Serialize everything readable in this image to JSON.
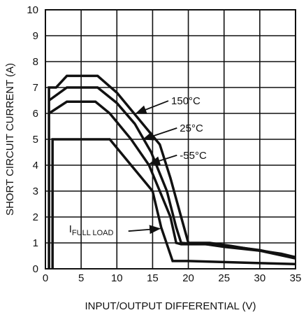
{
  "chart_data": {
    "type": "line",
    "title": "",
    "xlabel": "INPUT/OUTPUT DIFFERENTIAL (V)",
    "ylabel": "SHORT CIRCUIT CURRENT (A)",
    "xlim": [
      0,
      35
    ],
    "ylim": [
      0,
      10
    ],
    "xticks": [
      "0",
      "5",
      "10",
      "15",
      "20",
      "25",
      "30",
      "35"
    ],
    "yticks": [
      "0",
      "1",
      "2",
      "3",
      "4",
      "5",
      "6",
      "7",
      "8",
      "9",
      "10"
    ],
    "grid": true,
    "series": [
      {
        "name": "150°C",
        "points": [
          [
            0.5,
            0
          ],
          [
            0.5,
            7
          ],
          [
            1.5,
            7
          ],
          [
            3,
            7.45
          ],
          [
            7.3,
            7.45
          ],
          [
            10,
            6.8
          ],
          [
            13,
            5.8
          ],
          [
            16,
            4.8
          ],
          [
            17.5,
            3.5
          ],
          [
            19,
            2.0
          ],
          [
            20,
            1.0
          ],
          [
            21,
            1.0
          ],
          [
            23,
            1.0
          ],
          [
            26,
            0.88
          ],
          [
            30,
            0.7
          ],
          [
            33,
            0.58
          ],
          [
            35,
            0.45
          ]
        ]
      },
      {
        "name": "25°C",
        "points": [
          [
            0.5,
            6.5
          ],
          [
            3,
            7.0
          ],
          [
            7.3,
            7.0
          ],
          [
            10,
            6.4
          ],
          [
            12.5,
            5.6
          ],
          [
            14.8,
            4.5
          ],
          [
            17,
            3.0
          ],
          [
            18.3,
            1.6
          ],
          [
            19,
            1.0
          ],
          [
            20,
            0.98
          ],
          [
            22,
            0.96
          ],
          [
            25,
            0.9
          ],
          [
            30,
            0.72
          ],
          [
            35,
            0.45
          ]
        ]
      },
      {
        "name": "-55°C",
        "points": [
          [
            0.5,
            6.0
          ],
          [
            3,
            6.45
          ],
          [
            7,
            6.45
          ],
          [
            9,
            6.0
          ],
          [
            12,
            5.0
          ],
          [
            14.5,
            4.0
          ],
          [
            16,
            3.0
          ],
          [
            17.5,
            2.0
          ],
          [
            18.3,
            1.0
          ],
          [
            19,
            0.95
          ],
          [
            21,
            0.95
          ],
          [
            22.5,
            0.95
          ],
          [
            25,
            0.85
          ],
          [
            30,
            0.7
          ],
          [
            35,
            0.4
          ]
        ]
      },
      {
        "name": "IFULL LOAD",
        "points": [
          [
            1,
            0
          ],
          [
            1,
            5.0
          ],
          [
            9,
            5.0
          ],
          [
            12,
            4.0
          ],
          [
            15,
            3.0
          ],
          [
            16.2,
            1.6
          ],
          [
            17.8,
            0.3
          ],
          [
            20,
            0.3
          ],
          [
            25,
            0.26
          ],
          [
            30,
            0.22
          ],
          [
            35,
            0.18
          ]
        ]
      }
    ],
    "annotations": [
      {
        "label": "150°C",
        "text_at": [
          17.6,
          6.35
        ],
        "arrow_to": [
          12.7,
          6.0
        ]
      },
      {
        "label": "25°C",
        "text_at": [
          18.8,
          5.3
        ],
        "arrow_to": [
          13.7,
          5.0
        ]
      },
      {
        "label": "-55°C",
        "text_at": [
          18.8,
          4.25
        ],
        "arrow_to": [
          14.6,
          4.05
        ]
      },
      {
        "label_main": "I",
        "label_sub": "FULL LOAD",
        "text_at": [
          3.3,
          1.4
        ],
        "arrow_to": [
          16.0,
          1.55
        ]
      }
    ]
  }
}
